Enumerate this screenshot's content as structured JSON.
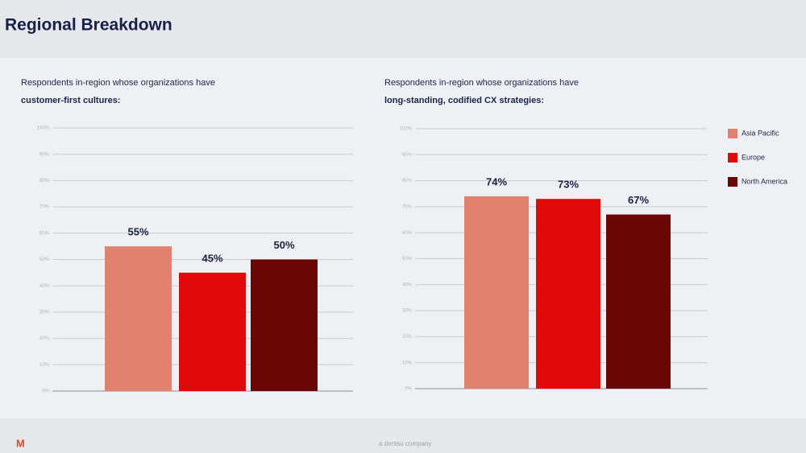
{
  "header": {
    "title": "Regional Breakdown"
  },
  "chart_data": [
    {
      "type": "bar",
      "title": "Respondents in-region whose organizations have",
      "title_emphasis": "customer-first cultures:",
      "series": [
        {
          "color": "#e0826f",
          "values": [
            55
          ],
          "value_labels": [
            "55%"
          ]
        },
        {
          "color": "#e00a0a",
          "values": [
            45
          ],
          "value_labels": [
            "45%"
          ]
        },
        {
          "color": "#6a0606",
          "values": [
            50
          ],
          "value_labels": [
            "50%"
          ]
        }
      ],
      "ylim": [
        0,
        100
      ],
      "yticks": [
        {
          "value": 0,
          "label": "0%"
        },
        {
          "value": 10,
          "label": "10%"
        },
        {
          "value": 20,
          "label": "20%"
        },
        {
          "value": 30,
          "label": "30%"
        },
        {
          "value": 40,
          "label": "40%"
        },
        {
          "value": 50,
          "label": "50%"
        },
        {
          "value": 60,
          "label": "60%"
        },
        {
          "value": 70,
          "label": "70%"
        },
        {
          "value": 80,
          "label": "80%"
        },
        {
          "value": 90,
          "label": "90%"
        },
        {
          "value": 100,
          "label": "100%"
        }
      ],
      "grid": true
    },
    {
      "type": "bar",
      "title": "Respondents in-region whose organizations have",
      "title_emphasis": "long-standing, codified CX strategies:",
      "series": [
        {
          "name": "Asia Pacific",
          "color": "#e0826f",
          "values": [
            74
          ],
          "value_labels": [
            "74%"
          ]
        },
        {
          "name": "Europe",
          "color": "#e00a0a",
          "values": [
            73
          ],
          "value_labels": [
            "73%"
          ]
        },
        {
          "name": "North America",
          "color": "#6a0606",
          "values": [
            67
          ],
          "value_labels": [
            "67%"
          ]
        }
      ],
      "ylim": [
        0,
        100
      ],
      "yticks": [
        {
          "value": 0,
          "label": "0%"
        },
        {
          "value": 10,
          "label": "10%"
        },
        {
          "value": 20,
          "label": "20%"
        },
        {
          "value": 30,
          "label": "30%"
        },
        {
          "value": 40,
          "label": "40%"
        },
        {
          "value": 50,
          "label": "50%"
        },
        {
          "value": 60,
          "label": "60%"
        },
        {
          "value": 70,
          "label": "70%"
        },
        {
          "value": 80,
          "label": "80%"
        },
        {
          "value": 90,
          "label": "90%"
        },
        {
          "value": 100,
          "label": "100%"
        }
      ],
      "grid": true,
      "legend": "right"
    }
  ],
  "footer": {
    "logo": "M",
    "company": "a dentsu company"
  }
}
